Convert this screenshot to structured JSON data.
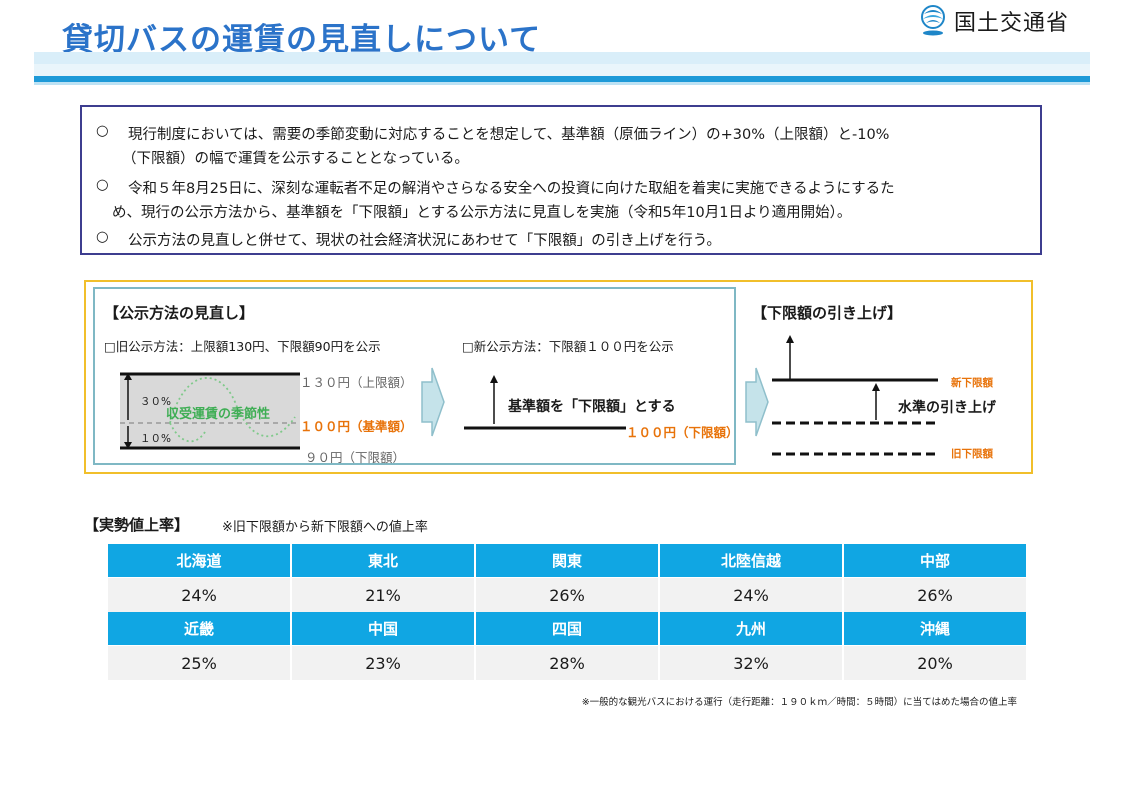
{
  "header": {
    "title": "貸切バスの運賃の見直しについて",
    "logo_text": "国土交通省"
  },
  "summary": {
    "bullet": "○",
    "items": [
      {
        "line1": "現行制度においては、需要の季節変動に対応することを想定して、基準額（原価ライン）の+30%（上限額）と-10%",
        "line2": "（下限額）の幅で運賃を公示することとなっている。"
      },
      {
        "line1": "令和５年8月25日に、深刻な運転者不足の解消やさらなる安全への投資に向けた取組を着実に実施できるようにするた",
        "line2": "め、現行の公示方法から、基準額を「下限額」とする公示方法に見直しを実施（令和5年10月1日より適用開始）。"
      },
      {
        "line1": "公示方法の見直しと併せて、現状の社会経済状況にあわせて「下限額」の引き上げを行う。",
        "line2": ""
      }
    ]
  },
  "method": {
    "heading": "【公示方法の見直し】",
    "old_label": "□旧公示方法：上限額130円、下限額90円を公示",
    "new_label": "□新公示方法：下限額１００円を公示",
    "old_diagram": {
      "upper": "１３０円（上限額）",
      "base": "１００円（基準額）",
      "lower": "９０円（下限額）",
      "pct_up": "３０%",
      "pct_down": "１０%",
      "seasonal": "収受運賃の季節性"
    },
    "new_diagram": {
      "caption": "基準額を「下限額」とする",
      "lower": "１００円（下限額）"
    }
  },
  "raise": {
    "heading": "【下限額の引き上げ】",
    "new_lower": "新下限額",
    "old_lower": "旧下限額",
    "caption": "水準の引き上げ"
  },
  "rates": {
    "heading": "【実勢値上率】",
    "note": "※旧下限額から新下限額への値上率",
    "row1_headers": [
      "北海道",
      "東北",
      "関東",
      "北陸信越",
      "中部"
    ],
    "row1_values": [
      "24%",
      "21%",
      "26%",
      "24%",
      "26%"
    ],
    "row2_headers": [
      "近畿",
      "中国",
      "四国",
      "九州",
      "沖縄"
    ],
    "row2_values": [
      "25%",
      "23%",
      "28%",
      "32%",
      "20%"
    ],
    "footnote": "※一般的な観光バスにおける運行（走行距離：１９０ｋｍ／時間：５時間）に当てはめた場合の値上率"
  },
  "colors": {
    "title_blue": "#2b73c9",
    "table_header": "#10a6e3",
    "accent_orange": "#e8730a",
    "box_navy": "#3d3d8f",
    "frame_yellow": "#f1bf2b"
  }
}
